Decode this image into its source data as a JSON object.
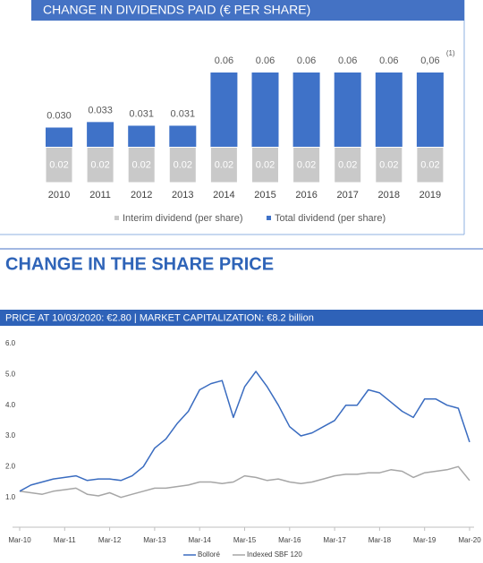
{
  "heading": "CHANGE IN THE SHARE PRICE",
  "chart_data": [
    {
      "type": "bar",
      "title": "CHANGE IN DIVIDENDS PAID (€ PER SHARE)",
      "categories": [
        "2010",
        "2011",
        "2012",
        "2013",
        "2014",
        "2015",
        "2016",
        "2017",
        "2018",
        "2019"
      ],
      "series": [
        {
          "name": "Total dividend (per share)",
          "color": "#3f72c8",
          "values": [
            0.03,
            0.033,
            0.031,
            0.031,
            0.06,
            0.06,
            0.06,
            0.06,
            0.06,
            0.06
          ],
          "value_labels": [
            "0.030",
            "0.033",
            "0.031",
            "0.031",
            "0.06",
            "0.06",
            "0.06",
            "0.06",
            "0.06",
            "0,06"
          ]
        },
        {
          "name": "Interim dividend (per share)",
          "color": "#c9c9c9",
          "values": [
            0.02,
            0.02,
            0.02,
            0.02,
            0.02,
            0.02,
            0.02,
            0.02,
            0.02,
            0.02
          ]
        }
      ],
      "footnote": "(1)",
      "legend": "bottom"
    },
    {
      "type": "line",
      "title": "PRICE AT 10/03/2020: €2.80 | MARKET CAPITALIZATION: €8.2 billion",
      "x": [
        "2010-03",
        "2010-06",
        "2010-09",
        "2010-12",
        "2011-03",
        "2011-06",
        "2011-09",
        "2011-12",
        "2012-03",
        "2012-06",
        "2012-09",
        "2012-12",
        "2013-03",
        "2013-06",
        "2013-09",
        "2013-12",
        "2014-03",
        "2014-06",
        "2014-09",
        "2014-12",
        "2015-03",
        "2015-06",
        "2015-09",
        "2015-12",
        "2016-03",
        "2016-06",
        "2016-09",
        "2016-12",
        "2017-03",
        "2017-06",
        "2017-09",
        "2017-12",
        "2018-03",
        "2018-06",
        "2018-09",
        "2018-12",
        "2019-03",
        "2019-06",
        "2019-09",
        "2019-12",
        "2020-03"
      ],
      "series": [
        {
          "name": "Bolloré",
          "color": "#3a6cc0",
          "values": [
            1.2,
            1.4,
            1.5,
            1.6,
            1.65,
            1.7,
            1.55,
            1.6,
            1.6,
            1.55,
            1.7,
            2.0,
            2.6,
            2.9,
            3.4,
            3.8,
            4.5,
            4.7,
            4.8,
            3.6,
            4.6,
            5.1,
            4.6,
            4.0,
            3.3,
            3.0,
            3.1,
            3.3,
            3.5,
            4.0,
            4.0,
            4.5,
            4.4,
            4.1,
            3.8,
            3.6,
            4.2,
            4.2,
            4.0,
            3.9,
            2.8
          ]
        },
        {
          "name": "Indexed SBF 120",
          "color": "#a6a6a6",
          "values": [
            1.2,
            1.15,
            1.1,
            1.2,
            1.25,
            1.3,
            1.1,
            1.05,
            1.15,
            1.0,
            1.1,
            1.2,
            1.3,
            1.3,
            1.35,
            1.4,
            1.5,
            1.5,
            1.45,
            1.5,
            1.7,
            1.65,
            1.55,
            1.6,
            1.5,
            1.45,
            1.5,
            1.6,
            1.7,
            1.75,
            1.75,
            1.8,
            1.8,
            1.9,
            1.85,
            1.65,
            1.8,
            1.85,
            1.9,
            2.0,
            1.55
          ]
        }
      ],
      "xlim": [
        "2010-03",
        "2020-03"
      ],
      "xticks": [
        {
          "value": "2010-03",
          "label": "Mar-10"
        },
        {
          "value": "2011-03",
          "label": "Mar-11"
        },
        {
          "value": "2012-03",
          "label": "Mar-12"
        },
        {
          "value": "2013-03",
          "label": "Mar-13"
        },
        {
          "value": "2014-03",
          "label": "Mar-14"
        },
        {
          "value": "2015-03",
          "label": "Mar-15"
        },
        {
          "value": "2016-03",
          "label": "Mar-16"
        },
        {
          "value": "2017-03",
          "label": "Mar-17"
        },
        {
          "value": "2018-03",
          "label": "Mar-18"
        },
        {
          "value": "2019-03",
          "label": "Mar-19"
        },
        {
          "value": "2020-03",
          "label": "Mar-20"
        }
      ],
      "ylim": [
        0,
        6
      ],
      "yticks": [
        {
          "value": 1,
          "label": "1.0"
        },
        {
          "value": 2,
          "label": "2.0"
        },
        {
          "value": 3,
          "label": "3.0"
        },
        {
          "value": 4,
          "label": "4.0"
        },
        {
          "value": 5,
          "label": "5.0"
        },
        {
          "value": 6,
          "label": "6.0"
        }
      ],
      "legend": "bottom"
    }
  ]
}
